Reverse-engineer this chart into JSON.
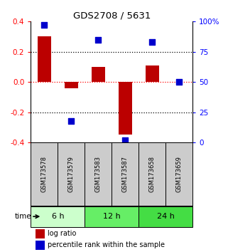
{
  "title": "GDS2708 / 5631",
  "samples": [
    "GSM173578",
    "GSM173579",
    "GSM173583",
    "GSM173587",
    "GSM173658",
    "GSM173659"
  ],
  "log_ratios": [
    0.3,
    -0.04,
    0.1,
    -0.35,
    0.11,
    0.0
  ],
  "percentile_ranks": [
    97,
    18,
    85,
    2,
    83,
    50
  ],
  "time_groups": [
    {
      "label": "6 h",
      "color": "#ccffcc",
      "start": 0,
      "end": 2
    },
    {
      "label": "12 h",
      "color": "#66ee66",
      "start": 2,
      "end": 4
    },
    {
      "label": "24 h",
      "color": "#44dd44",
      "start": 4,
      "end": 6
    }
  ],
  "bar_color": "#bb0000",
  "dot_color": "#0000cc",
  "ylim_left": [
    -0.4,
    0.4
  ],
  "ylim_right": [
    0,
    100
  ],
  "yticks_left": [
    -0.4,
    -0.2,
    0.0,
    0.2,
    0.4
  ],
  "yticks_right": [
    0,
    25,
    50,
    75,
    100
  ],
  "hlines_black": [
    -0.2,
    0.2
  ],
  "hline_red": 0.0,
  "bg_color": "#ffffff",
  "sample_box_color": "#cccccc",
  "bar_width": 0.5,
  "dot_size": 28
}
